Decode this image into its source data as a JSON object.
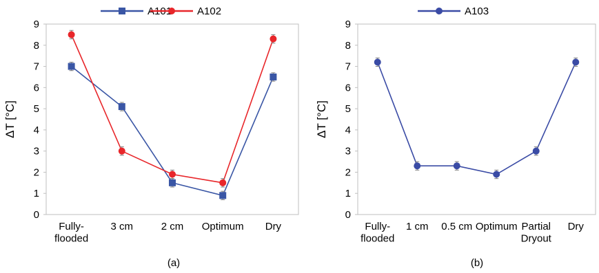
{
  "chart_data": [
    {
      "type": "line",
      "panel_label": "(a)",
      "ylabel": "ΔT [°C]",
      "ylim": [
        0,
        9
      ],
      "yticks": [
        0,
        1,
        2,
        3,
        4,
        5,
        6,
        7,
        8,
        9
      ],
      "categories": [
        "Fully-\nflooded",
        "3 cm",
        "2 cm",
        "Optimum",
        "Dry"
      ],
      "legend_position": "top",
      "grid": false,
      "series": [
        {
          "name": "A101",
          "color": "#3a56a5",
          "marker": "square",
          "values": [
            7.0,
            5.1,
            1.5,
            0.9,
            6.5
          ],
          "error": [
            0.2,
            0.2,
            0.2,
            0.2,
            0.2
          ]
        },
        {
          "name": "A102",
          "color": "#e8262a",
          "marker": "circle",
          "values": [
            8.5,
            3.0,
            1.9,
            1.5,
            8.3
          ],
          "error": [
            0.2,
            0.2,
            0.2,
            0.2,
            0.2
          ]
        }
      ]
    },
    {
      "type": "line",
      "panel_label": "(b)",
      "ylabel": "ΔT [°C]",
      "ylim": [
        0,
        9
      ],
      "yticks": [
        0,
        1,
        2,
        3,
        4,
        5,
        6,
        7,
        8,
        9
      ],
      "categories": [
        "Fully-\nflooded",
        "1 cm",
        "0.5 cm",
        "Optimum",
        "Partial\nDryout",
        "Dry"
      ],
      "legend_position": "top",
      "grid": false,
      "series": [
        {
          "name": "A103",
          "color": "#3a4ba5",
          "marker": "circle",
          "values": [
            7.2,
            2.3,
            2.3,
            1.9,
            3.0,
            7.2
          ],
          "error": [
            0.2,
            0.2,
            0.2,
            0.2,
            0.2,
            0.2
          ]
        }
      ]
    }
  ]
}
